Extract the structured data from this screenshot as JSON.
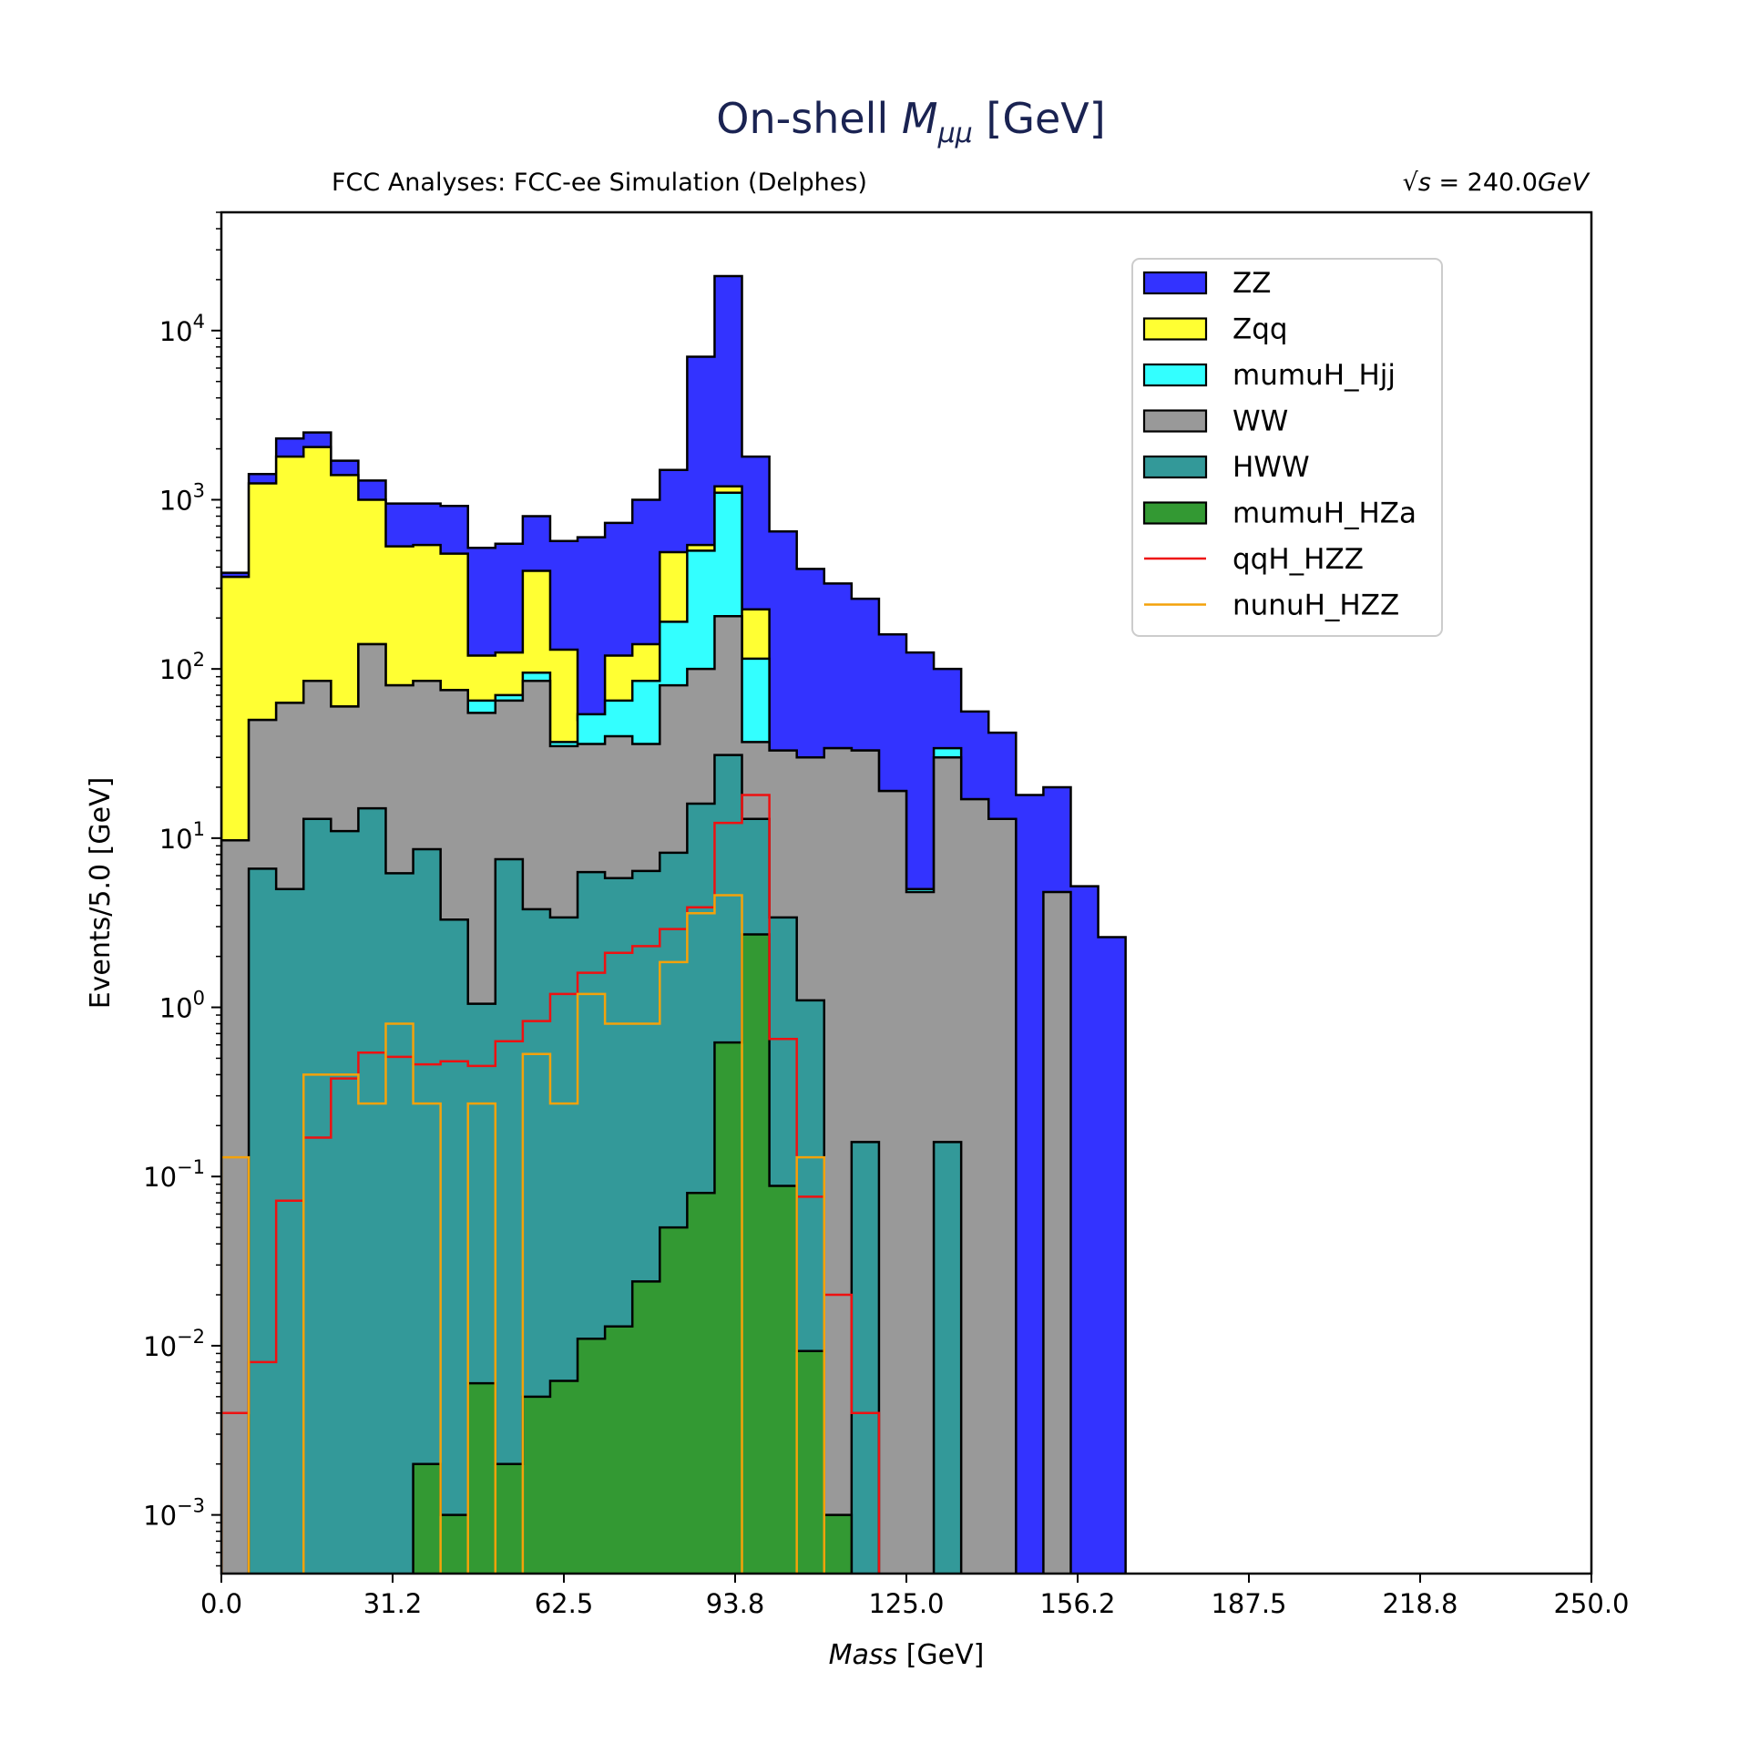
{
  "chart_data": {
    "type": "step-histogram-stacked",
    "title_prefix": "On-shell ",
    "title_symbol": "M",
    "title_subscript": "μμ",
    "title_suffix": " [GeV]",
    "subtitle_left": "FCC Analyses: FCC-ee Simulation (Delphes)",
    "subtitle_right_prefix": "√",
    "subtitle_right_s": "s",
    "subtitle_right_suffix": " = 240.0",
    "subtitle_right_unit": "GeV",
    "xlabel_italic": "Mass",
    "xlabel_unit": " [GeV]",
    "ylabel": "Events/5.0 [GeV]",
    "xlim": [
      0,
      250
    ],
    "ylim": [
      0.00045,
      50000
    ],
    "yscale": "log",
    "legend_position": "upper right",
    "xticks": [
      "0.0",
      "31.2",
      "62.5",
      "93.8",
      "125.0",
      "156.2",
      "187.5",
      "218.8",
      "250.0"
    ],
    "yticks": [
      {
        "base": "10",
        "exp": "−3"
      },
      {
        "base": "10",
        "exp": "−2"
      },
      {
        "base": "10",
        "exp": "−1"
      },
      {
        "base": "10",
        "exp": "0"
      },
      {
        "base": "10",
        "exp": "1"
      },
      {
        "base": "10",
        "exp": "2"
      },
      {
        "base": "10",
        "exp": "3"
      },
      {
        "base": "10",
        "exp": "4"
      }
    ],
    "bin_edges": [
      0,
      5,
      10,
      15,
      20,
      25,
      30,
      35,
      40,
      45,
      50,
      55,
      60,
      65,
      70,
      75,
      80,
      85,
      90,
      95,
      100,
      105,
      110,
      115,
      120,
      125,
      130,
      135,
      140,
      145,
      150,
      155,
      160,
      165
    ],
    "stacked_series": [
      {
        "name": "ZZ",
        "color": "#3333ff",
        "values": [
          370,
          1420,
          2300,
          2500,
          1700,
          1300,
          950,
          950,
          920,
          520,
          550,
          800,
          570,
          600,
          730,
          1000,
          1500,
          7000,
          21000,
          1800,
          650,
          390,
          320,
          260,
          160,
          125,
          100,
          56,
          42,
          18,
          20,
          5.2,
          2.6
        ]
      },
      {
        "name": "Zqq",
        "color": "#ffff33",
        "values": [
          350,
          1250,
          1800,
          2050,
          1400,
          1000,
          530,
          540,
          480,
          120,
          125,
          380,
          130,
          50,
          120,
          140,
          490,
          540,
          1200,
          225,
          0,
          0,
          0,
          0,
          0,
          0,
          0,
          0,
          0,
          0,
          0,
          0,
          0
        ]
      },
      {
        "name": "mumuH_Hjj",
        "color": "#33ffff",
        "values": [
          9.7,
          50,
          63,
          85,
          60,
          140,
          80,
          85,
          75,
          65,
          70,
          95,
          37,
          54,
          65,
          85,
          190,
          500,
          1100,
          115,
          23,
          11,
          34,
          33,
          19,
          5,
          34,
          17,
          13,
          0,
          0,
          0,
          0
        ]
      },
      {
        "name": "WW",
        "color": "#999999",
        "values": [
          9.7,
          50,
          63,
          85,
          60,
          140,
          80,
          85,
          75,
          55,
          65,
          85,
          35,
          36,
          40,
          36,
          80,
          100,
          205,
          37,
          33,
          30,
          34,
          33,
          19,
          4.8,
          30,
          17,
          13,
          0,
          4.8,
          0,
          0
        ]
      },
      {
        "name": "HWW",
        "color": "#339999",
        "values": [
          0,
          6.6,
          5,
          13,
          11,
          15,
          6.2,
          8.6,
          3.3,
          1.05,
          7.5,
          3.8,
          3.4,
          6.3,
          5.8,
          6.4,
          8.2,
          16,
          31,
          13,
          3.4,
          1.1,
          0,
          0.16,
          0,
          0,
          0.16,
          0,
          0,
          0,
          0,
          0,
          0
        ]
      },
      {
        "name": "mumuH_HZa",
        "color": "#339933",
        "values": [
          0,
          0,
          0,
          0,
          0,
          0,
          0,
          0.002,
          0.001,
          0.006,
          0.002,
          0.005,
          0.0062,
          0.011,
          0.013,
          0.024,
          0.05,
          0.08,
          0.62,
          2.7,
          0.088,
          0.0093,
          0.001,
          0,
          0,
          0,
          0,
          0,
          0,
          0,
          0,
          0,
          0
        ]
      }
    ],
    "line_series": [
      {
        "name": "qqH_HZZ",
        "color": "#ee1111",
        "values": [
          0.004,
          0.008,
          0.072,
          0.17,
          0.38,
          0.54,
          0.51,
          0.46,
          0.48,
          0.45,
          0.63,
          0.83,
          1.2,
          1.6,
          2.1,
          2.3,
          2.9,
          3.9,
          12.3,
          18,
          0.65,
          0.076,
          0.02,
          0.004
        ]
      },
      {
        "name": "nunuH_HZZ",
        "color": "#f4a20a",
        "values": [
          0.13,
          0,
          0,
          0.4,
          0.4,
          0.27,
          0.8,
          0.27,
          0,
          0.27,
          0,
          0.53,
          0.27,
          1.2,
          0.8,
          0.8,
          1.85,
          3.6,
          4.6,
          0,
          0,
          0.13,
          0,
          0
        ]
      }
    ]
  }
}
